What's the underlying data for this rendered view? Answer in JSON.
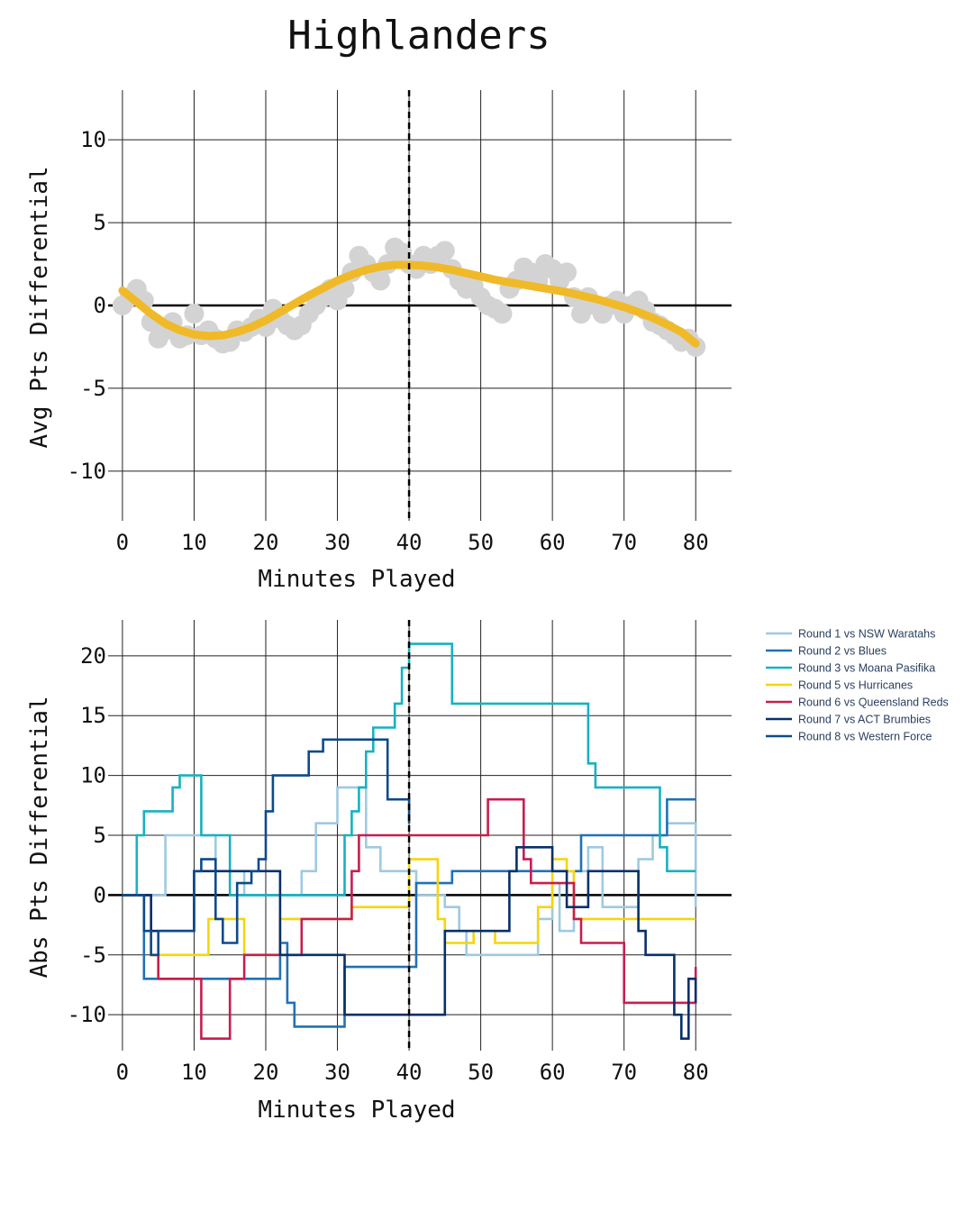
{
  "title": "Highlanders",
  "chart_data": [
    {
      "type": "scatter",
      "xlabel": "Minutes Played",
      "ylabel": "Avg Pts Differential",
      "xlim": [
        -2,
        85
      ],
      "ylim": [
        -13,
        13
      ],
      "xticks": [
        0,
        10,
        20,
        30,
        40,
        50,
        60,
        70,
        80
      ],
      "yticks": [
        10,
        5,
        0,
        -5,
        -10
      ],
      "grid": true,
      "vline": 40,
      "colors": {
        "points": "#d3d3d3",
        "trend": "#f0b928"
      },
      "series": [
        {
          "kind": "points",
          "x": [
            0,
            1,
            2,
            3,
            4,
            5,
            6,
            7,
            8,
            9,
            10,
            11,
            12,
            13,
            14,
            15,
            16,
            17,
            18,
            19,
            20,
            21,
            22,
            23,
            24,
            25,
            26,
            27,
            28,
            29,
            30,
            31,
            32,
            33,
            34,
            35,
            36,
            37,
            38,
            39,
            40,
            41,
            42,
            43,
            44,
            45,
            46,
            47,
            48,
            49,
            50,
            51,
            52,
            53,
            54,
            55,
            56,
            57,
            58,
            59,
            60,
            61,
            62,
            63,
            64,
            65,
            66,
            67,
            68,
            69,
            70,
            71,
            72,
            73,
            74,
            75,
            76,
            77,
            78,
            79,
            80
          ],
          "y": [
            0,
            0.5,
            1,
            0.3,
            -1,
            -2,
            -1.5,
            -1,
            -2,
            -1.8,
            -0.5,
            -1.8,
            -1.5,
            -2,
            -2.3,
            -2.2,
            -1.5,
            -1.6,
            -1.3,
            -0.8,
            -1.3,
            -0.2,
            -0.8,
            -1.2,
            -1.5,
            -1.2,
            -0.5,
            0,
            0.5,
            1,
            0.3,
            1,
            2,
            3,
            2.5,
            2,
            1.5,
            2.5,
            3.5,
            3.2,
            2.5,
            2.2,
            3,
            2.5,
            3,
            3.3,
            2.2,
            1.5,
            1,
            1.2,
            0.5,
            0,
            -0.2,
            -0.5,
            1,
            1.5,
            2.3,
            2,
            1.5,
            2.5,
            2.2,
            1.5,
            2,
            0.5,
            -0.5,
            0.5,
            0,
            -0.5,
            0,
            0.3,
            -0.5,
            0,
            0.3,
            -0.3,
            -1,
            -1.2,
            -1.5,
            -1.8,
            -2.2,
            -2,
            -2.5
          ]
        },
        {
          "kind": "trend",
          "x": [
            0,
            2,
            4,
            6,
            8,
            10,
            12,
            14,
            16,
            18,
            20,
            22,
            24,
            26,
            28,
            30,
            32,
            34,
            36,
            38,
            40,
            42,
            44,
            46,
            48,
            50,
            52,
            54,
            56,
            58,
            60,
            62,
            64,
            66,
            68,
            70,
            72,
            74,
            76,
            78,
            80
          ],
          "y": [
            0.9,
            0.2,
            -0.5,
            -1.1,
            -1.5,
            -1.75,
            -1.85,
            -1.8,
            -1.6,
            -1.3,
            -0.9,
            -0.4,
            0.1,
            0.6,
            1.05,
            1.5,
            1.85,
            2.15,
            2.35,
            2.45,
            2.45,
            2.4,
            2.3,
            2.15,
            1.95,
            1.75,
            1.55,
            1.4,
            1.25,
            1.1,
            0.95,
            0.8,
            0.6,
            0.4,
            0.15,
            -0.1,
            -0.4,
            -0.75,
            -1.15,
            -1.6,
            -2.3
          ]
        }
      ]
    },
    {
      "type": "line",
      "xlabel": "Minutes Played",
      "ylabel": "Abs Pts Differential",
      "xlim": [
        -2,
        85
      ],
      "ylim": [
        -13,
        23
      ],
      "xticks": [
        0,
        10,
        20,
        30,
        40,
        50,
        60,
        70,
        80
      ],
      "yticks": [
        20,
        15,
        10,
        5,
        0,
        -5,
        -10
      ],
      "grid": true,
      "vline": 40,
      "legend_position": "right",
      "series": [
        {
          "name": "Round 1 vs NSW Waratahs",
          "color": "#9ecae1",
          "x": [
            0,
            5,
            6,
            12,
            13,
            16,
            17,
            24,
            25,
            26,
            27,
            30,
            32,
            34,
            35,
            36,
            37,
            40,
            41,
            43,
            45,
            46,
            47,
            48,
            52,
            57,
            58,
            60,
            61,
            62,
            63,
            64,
            65,
            66,
            67,
            68,
            69,
            71,
            72,
            73,
            74,
            76,
            79,
            80
          ],
          "y": [
            0,
            0,
            5,
            5,
            2,
            2,
            0,
            0,
            2,
            2,
            6,
            9,
            9,
            4,
            4,
            2,
            2,
            2,
            0,
            0,
            -1,
            -1,
            -3,
            -5,
            -5,
            -5,
            -2,
            1,
            -3,
            -3,
            2,
            2,
            4,
            4,
            -1,
            -1,
            -1,
            -1,
            3,
            3,
            5,
            6,
            6,
            -1
          ]
        },
        {
          "name": "Round 2 vs Blues",
          "color": "#2171b5",
          "x": [
            0,
            3,
            4,
            10,
            13,
            16,
            20,
            21,
            22,
            23,
            24,
            30,
            31,
            38,
            40,
            41,
            44,
            45,
            46,
            47,
            49,
            51,
            52,
            55,
            56,
            58,
            59,
            62,
            63,
            64,
            65,
            71,
            75,
            76,
            80
          ],
          "y": [
            0,
            -7,
            -7,
            -7,
            -7,
            -7,
            -7,
            -7,
            -4,
            -9,
            -11,
            -11,
            -6,
            -6,
            -6,
            1,
            1,
            1,
            2,
            2,
            2,
            2,
            2,
            2,
            2,
            2,
            2,
            2,
            2,
            5,
            5,
            5,
            5,
            8,
            8
          ]
        },
        {
          "name": "Round 3 vs Moana Pasifika",
          "color": "#17b1c0",
          "x": [
            0,
            2,
            3,
            5,
            6,
            7,
            8,
            9,
            10,
            11,
            12,
            15,
            16,
            18,
            21,
            22,
            23,
            24,
            25,
            26,
            27,
            28,
            30,
            31,
            32,
            33,
            34,
            35,
            36,
            37,
            38,
            39,
            40,
            41,
            42,
            43,
            44,
            45,
            46,
            64,
            65,
            66,
            67,
            68,
            69,
            70,
            71,
            72,
            73,
            74,
            75,
            76,
            77,
            80
          ],
          "y": [
            0,
            5,
            7,
            7,
            7,
            9,
            10,
            10,
            10,
            5,
            5,
            0,
            0,
            0,
            0,
            0,
            0,
            0,
            0,
            0,
            0,
            0,
            0,
            5,
            7,
            9,
            12,
            14,
            14,
            14,
            16,
            19,
            21,
            21,
            21,
            21,
            21,
            21,
            16,
            16,
            11,
            9,
            9,
            9,
            9,
            9,
            9,
            9,
            9,
            9,
            4,
            2,
            2,
            2
          ]
        },
        {
          "name": "Round 5 vs Hurricanes",
          "color": "#f5d60a",
          "x": [
            0,
            3,
            4,
            5,
            6,
            10,
            11,
            12,
            13,
            14,
            16,
            17,
            20,
            21,
            22,
            23,
            24,
            31,
            32,
            33,
            34,
            36,
            38,
            40,
            41,
            42,
            43,
            44,
            45,
            46,
            47,
            49,
            50,
            51,
            52,
            57,
            58,
            60,
            61,
            62,
            63,
            64,
            65,
            66,
            80
          ],
          "y": [
            0,
            -3,
            -5,
            -5,
            -5,
            -5,
            -5,
            -2,
            -2,
            -2,
            -2,
            -5,
            -5,
            -5,
            -2,
            -2,
            -2,
            -2,
            -1,
            -1,
            -1,
            -1,
            -1,
            3,
            3,
            3,
            3,
            -2,
            -4,
            -4,
            -4,
            -3,
            -3,
            -3,
            -4,
            -4,
            -1,
            3,
            3,
            2,
            -2,
            -2,
            -2,
            -2,
            -2
          ]
        },
        {
          "name": "Round 6 vs Queensland Reds",
          "color": "#c71e4f",
          "x": [
            0,
            4,
            5,
            10,
            11,
            12,
            14,
            15,
            17,
            20,
            21,
            22,
            25,
            26,
            30,
            32,
            33,
            34,
            40,
            50,
            51,
            55,
            56,
            57,
            58,
            61,
            62,
            63,
            64,
            65,
            66,
            69,
            70,
            71,
            79,
            80
          ],
          "y": [
            0,
            -5,
            -7,
            -7,
            -12,
            -12,
            -12,
            -7,
            -5,
            -5,
            -5,
            -5,
            -2,
            -2,
            -2,
            2,
            5,
            5,
            5,
            5,
            8,
            8,
            3,
            1,
            1,
            1,
            1,
            -2,
            -4,
            -4,
            -4,
            -4,
            -9,
            -9,
            -9,
            -6
          ]
        },
        {
          "name": "Round 7 vs ACT Brumbies",
          "color": "#08306b",
          "x": [
            0,
            4,
            5,
            8,
            9,
            10,
            11,
            16,
            20,
            21,
            22,
            23,
            26,
            30,
            31,
            35,
            40,
            41,
            42,
            43,
            44,
            45,
            46,
            50,
            53,
            54,
            55,
            56,
            57,
            59,
            60,
            62,
            63,
            65,
            66,
            67,
            68,
            70,
            71,
            72,
            73,
            76,
            77,
            78,
            79,
            80
          ],
          "y": [
            0,
            -3,
            -3,
            -3,
            -3,
            2,
            2,
            2,
            2,
            2,
            -5,
            -5,
            -5,
            -5,
            -10,
            -10,
            -10,
            -10,
            -10,
            -10,
            -10,
            -3,
            -3,
            -3,
            -3,
            2,
            4,
            4,
            4,
            4,
            2,
            -1,
            -1,
            2,
            2,
            2,
            2,
            2,
            2,
            -3,
            -5,
            -5,
            -10,
            -12,
            -7,
            -9
          ]
        },
        {
          "name": "Round 8 vs Western Force",
          "color": "#0d4a8a",
          "x": [
            0,
            3,
            4,
            5,
            9,
            10,
            11,
            12,
            13,
            14,
            15,
            16,
            18,
            19,
            20,
            21,
            22,
            23,
            24,
            25,
            26,
            27,
            28,
            29,
            30,
            31,
            32,
            34,
            35,
            36,
            37,
            40
          ],
          "y": [
            0,
            -3,
            -5,
            -3,
            -3,
            2,
            3,
            3,
            -2,
            -4,
            -4,
            1,
            2,
            3,
            7,
            10,
            10,
            10,
            10,
            10,
            12,
            12,
            13,
            13,
            13,
            13,
            13,
            13,
            13,
            13,
            8,
            6
          ]
        }
      ]
    }
  ]
}
